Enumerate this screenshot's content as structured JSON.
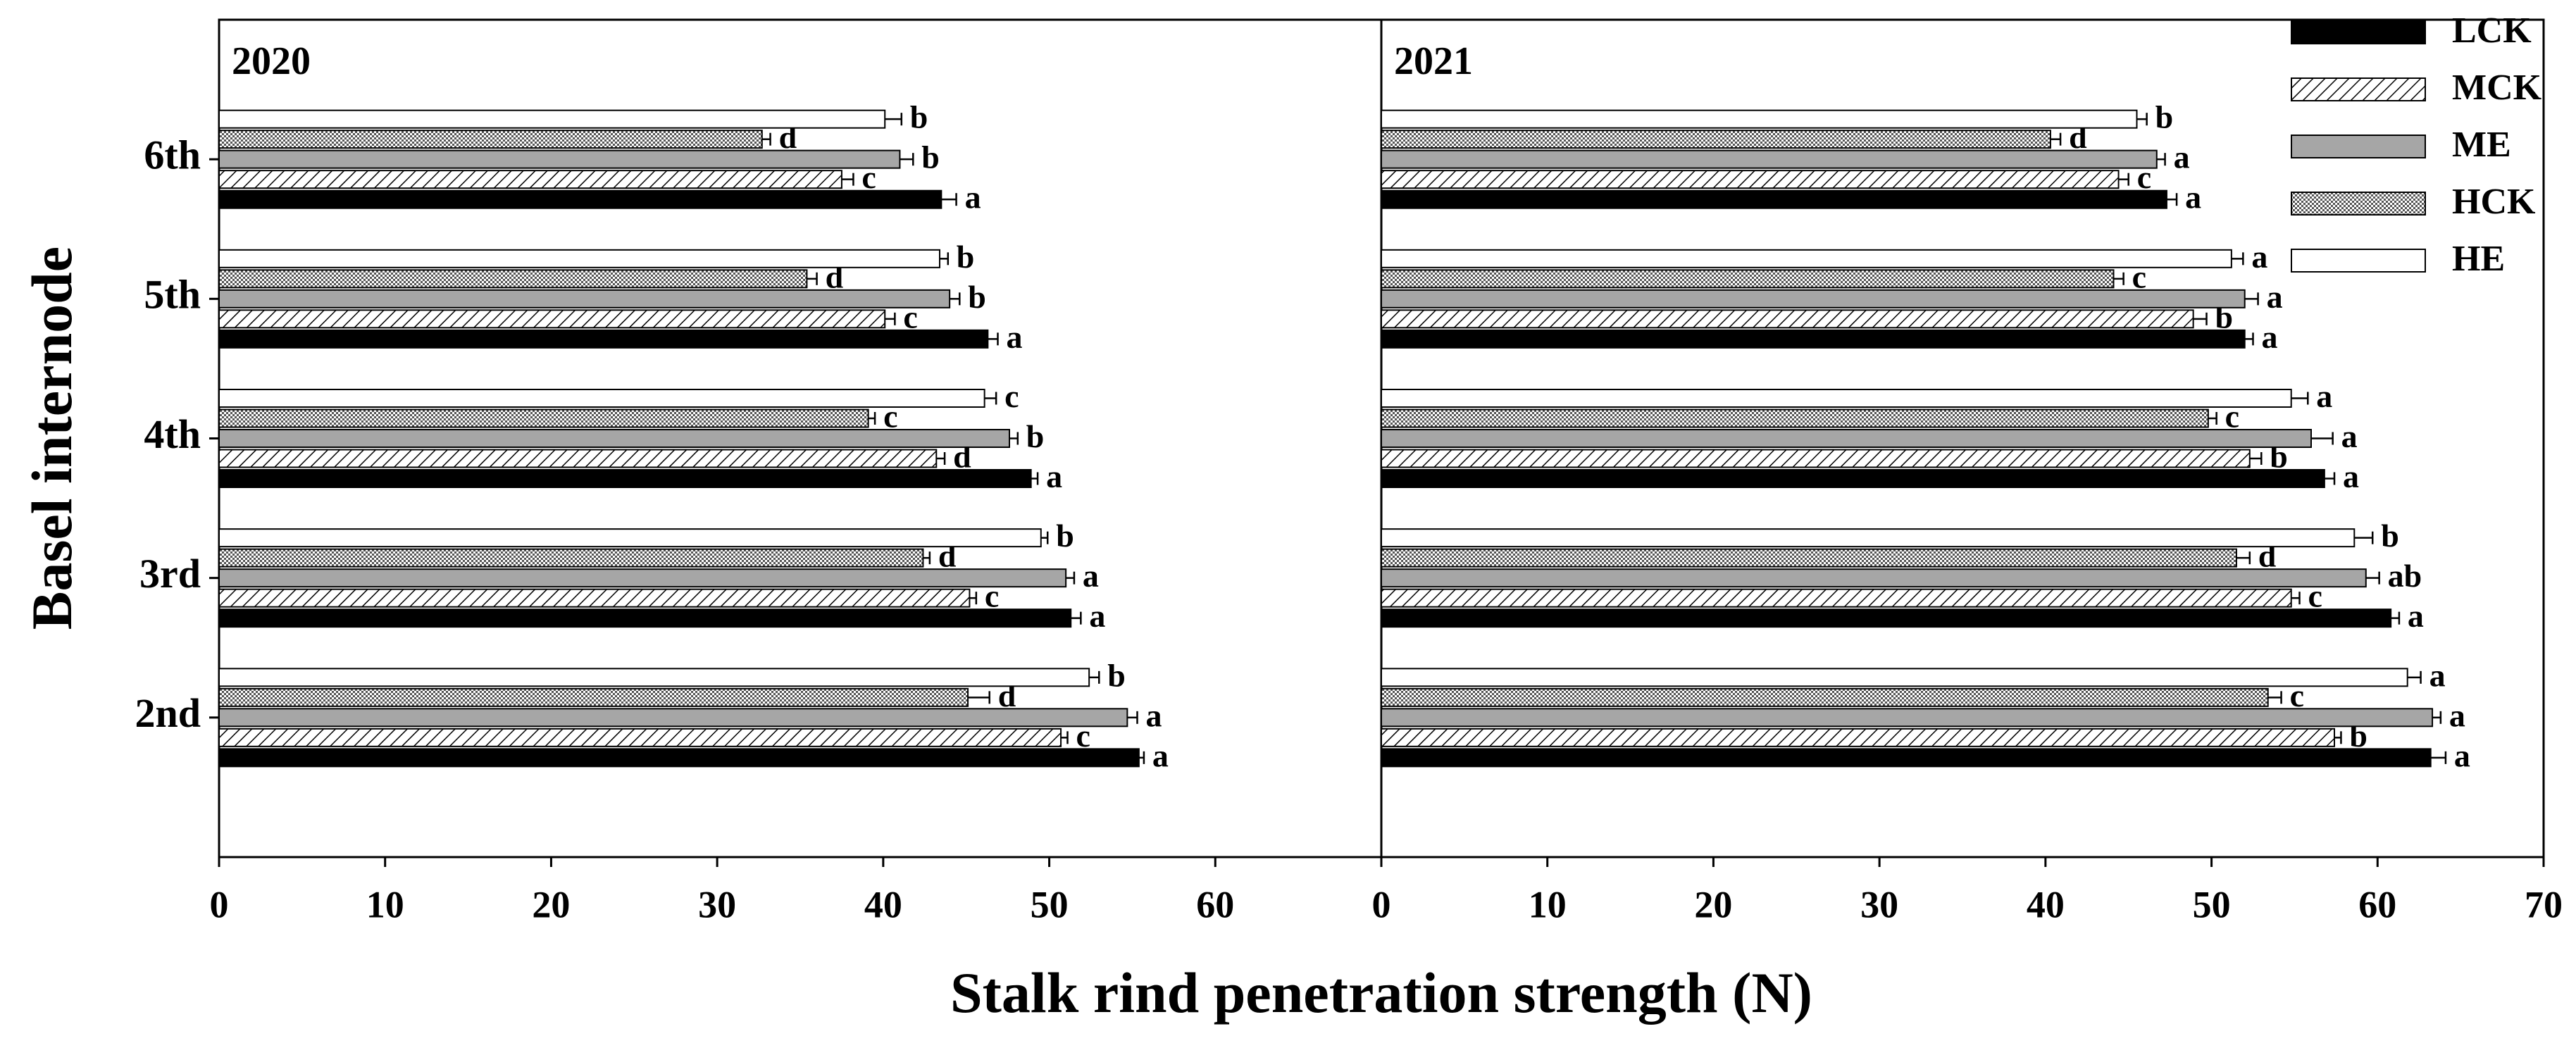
{
  "chart_data": [
    {
      "type": "bar",
      "orientation": "horizontal",
      "title": "2020",
      "xlabel": "Stalk rind penetration strength (N)",
      "ylabel": "Basel internode",
      "categories": [
        "2nd",
        "3rd",
        "4th",
        "5th",
        "6th"
      ],
      "xlim": [
        0,
        70
      ],
      "xticks": [
        0,
        10,
        20,
        30,
        40,
        50,
        60
      ],
      "series": [
        {
          "color": "#000000",
          "pattern": "solid",
          "values": [
            55.4,
            51.3,
            48.9,
            46.3,
            43.5
          ],
          "errors": [
            0.3,
            0.6,
            0.4,
            0.6,
            0.9
          ],
          "letters": [
            "a",
            "a",
            "a",
            "a",
            "a"
          ]
        },
        {
          "color": "#ffffff",
          "pattern": "hatch",
          "values": [
            50.7,
            45.2,
            43.2,
            40.1,
            37.5
          ],
          "errors": [
            0.4,
            0.4,
            0.5,
            0.6,
            0.7
          ],
          "letters": [
            "c",
            "c",
            "d",
            "c",
            "c"
          ]
        },
        {
          "color": "#a6a6a6",
          "pattern": "solid",
          "values": [
            54.7,
            51.0,
            47.6,
            44.0,
            41.0
          ],
          "errors": [
            0.6,
            0.5,
            0.5,
            0.6,
            0.8
          ],
          "letters": [
            "a",
            "a",
            "b",
            "b",
            "b"
          ]
        },
        {
          "color": "#c8c8c8",
          "pattern": "dots",
          "values": [
            45.1,
            42.4,
            39.1,
            35.4,
            32.7
          ],
          "errors": [
            1.3,
            0.4,
            0.4,
            0.6,
            0.5
          ],
          "letters": [
            "d",
            "d",
            "c",
            "d",
            "d"
          ]
        },
        {
          "color": "#ffffff",
          "pattern": "solid",
          "values": [
            52.4,
            49.5,
            46.1,
            43.4,
            40.1
          ],
          "errors": [
            0.6,
            0.4,
            0.7,
            0.5,
            1.0
          ],
          "letters": [
            "b",
            "b",
            "c",
            "b",
            "b"
          ]
        }
      ]
    },
    {
      "type": "bar",
      "orientation": "horizontal",
      "title": "2021",
      "categories": [
        "2nd",
        "3rd",
        "4th",
        "5th",
        "6th"
      ],
      "xlim": [
        0,
        70
      ],
      "xticks": [
        0,
        10,
        20,
        30,
        40,
        50,
        60,
        70
      ],
      "legend": "upper right",
      "series": [
        {
          "name": "LCK",
          "color": "#000000",
          "pattern": "solid",
          "values": [
            63.2,
            60.8,
            56.8,
            52.0,
            47.3
          ],
          "errors": [
            0.9,
            0.5,
            0.6,
            0.5,
            0.6
          ],
          "letters": [
            "a",
            "a",
            "a",
            "a",
            "a"
          ]
        },
        {
          "name": "MCK",
          "color": "#ffffff",
          "pattern": "hatch",
          "values": [
            57.4,
            54.8,
            52.3,
            48.9,
            44.4
          ],
          "errors": [
            0.4,
            0.5,
            0.7,
            0.8,
            0.6
          ],
          "letters": [
            "b",
            "c",
            "b",
            "b",
            "c"
          ]
        },
        {
          "name": "ME",
          "color": "#a6a6a6",
          "pattern": "solid",
          "values": [
            63.3,
            59.3,
            56.0,
            52.0,
            46.7
          ],
          "errors": [
            0.5,
            0.8,
            1.3,
            0.8,
            0.5
          ],
          "letters": [
            "a",
            "ab",
            "a",
            "a",
            "a"
          ]
        },
        {
          "name": "HCK",
          "color": "#c8c8c8",
          "pattern": "dots",
          "values": [
            53.4,
            51.5,
            49.8,
            44.1,
            40.3
          ],
          "errors": [
            0.8,
            0.8,
            0.5,
            0.6,
            0.6
          ],
          "letters": [
            "c",
            "d",
            "c",
            "c",
            "d"
          ]
        },
        {
          "name": "HE",
          "color": "#ffffff",
          "pattern": "solid",
          "values": [
            61.8,
            58.6,
            54.8,
            51.2,
            45.5
          ],
          "errors": [
            0.8,
            1.1,
            1.0,
            0.7,
            0.6
          ],
          "letters": [
            "a",
            "b",
            "a",
            "a",
            "b"
          ]
        }
      ]
    }
  ]
}
